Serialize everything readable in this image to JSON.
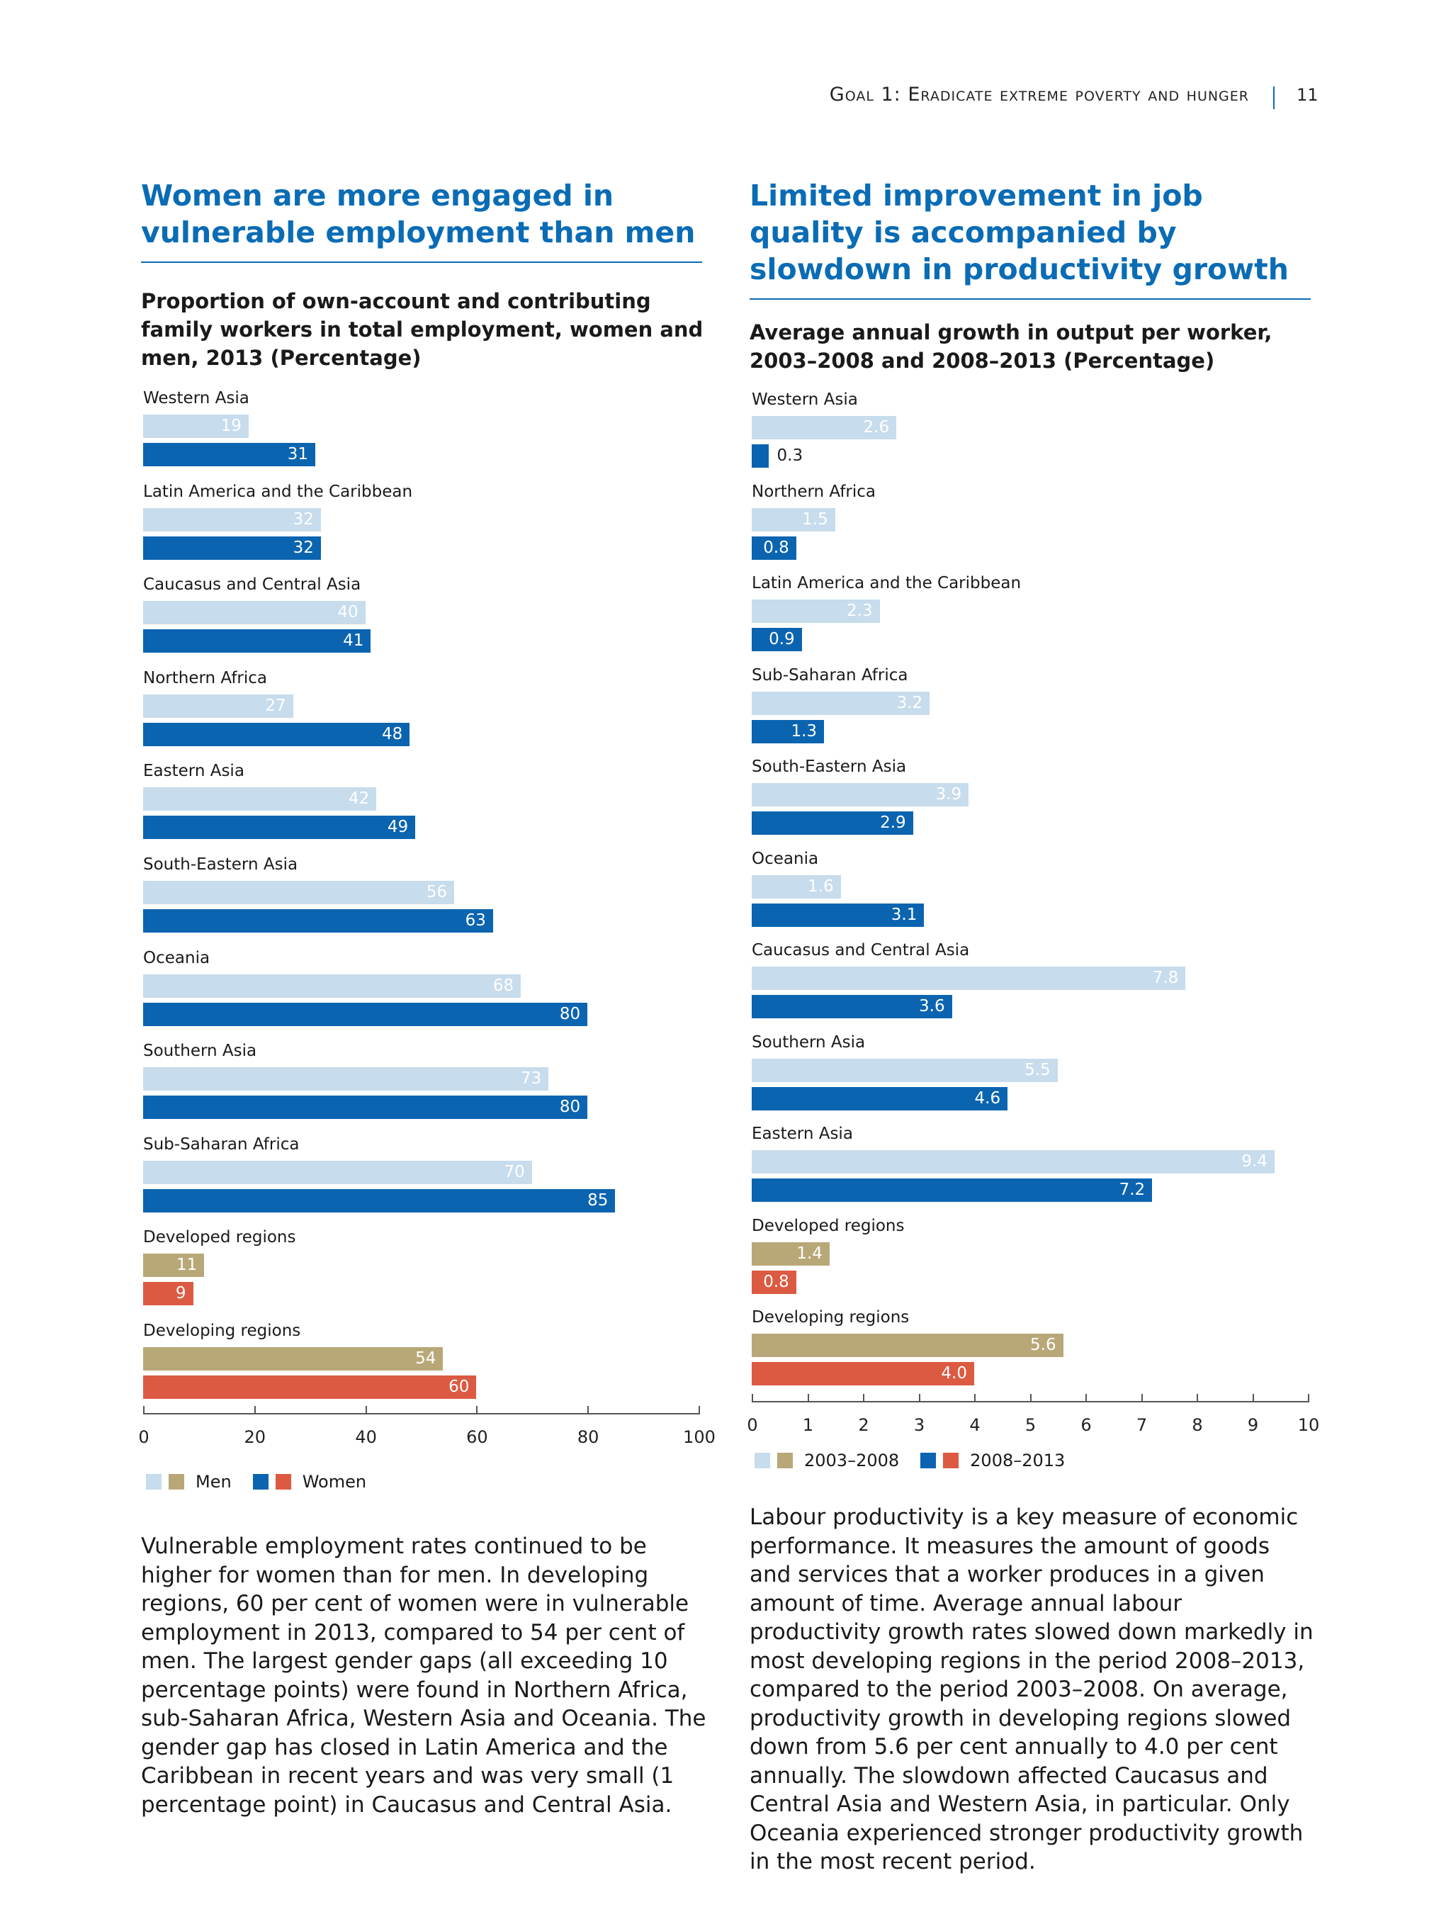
{
  "header": {
    "running_title": "Goal 1: Eradicate extreme poverty and hunger",
    "page_number": "11"
  },
  "colors": {
    "title_blue": "#0a6cb5",
    "light_blue": "#c7dcec",
    "dark_blue": "#0b64b0",
    "tan": "#b8a878",
    "red": "#dc5a41"
  },
  "left": {
    "title": "Women are more engaged in vulnerable employment than men",
    "subtitle": "Proportion of own-account and contributing family workers in total employment, women and men, 2013 (Percentage)",
    "body": "Vulnerable employment rates continued to be higher for women than for men. In developing regions, 60 per cent of women were in vulnerable employment in 2013, compared to 54 per cent of men. The largest gender gaps (all exceeding 10 percentage points) were found in Northern Africa, sub-Saharan Africa, Western Asia and Oceania. The gender gap has closed in Latin America and the Caribbean in recent years and was very small (1 percentage point) in Caucasus and Central Asia."
  },
  "right": {
    "title": "Limited improvement in job quality is accompanied by slowdown in productivity growth",
    "subtitle": "Average annual growth in output per worker, 2003–2008 and 2008–2013 (Percentage)",
    "body": "Labour productivity is a key measure of economic performance. It measures the amount of goods and services that a worker produces in a given amount of time. Average annual labour productivity growth rates slowed down markedly in most developing regions in the period 2008–2013, compared to the period 2003–2008. On average, productivity growth in developing regions slowed down from 5.6 per cent annually to 4.0 per cent annually. The slowdown affected Caucasus and Central Asia and Western Asia, in particular. Only Oceania experienced stronger productivity growth in the most recent period."
  },
  "chart_data": [
    {
      "type": "bar",
      "orientation": "horizontal",
      "title": "Proportion of own-account and contributing family workers in total employment, women and men, 2013 (Percentage)",
      "categories": [
        "Western Asia",
        "Latin America and the Caribbean",
        "Caucasus and Central Asia",
        "Northern Africa",
        "Eastern Asia",
        "South-Eastern Asia",
        "Oceania",
        "Southern Asia",
        "Sub-Saharan Africa",
        "Developed regions",
        "Developing regions"
      ],
      "series": [
        {
          "name": "Men",
          "values": [
            19,
            32,
            40,
            27,
            42,
            56,
            68,
            73,
            70,
            11,
            54
          ],
          "labels": [
            "19",
            "32",
            "40",
            "27",
            "42",
            "56",
            "68",
            "73",
            "70",
            "11",
            "54"
          ]
        },
        {
          "name": "Women",
          "values": [
            31,
            32,
            41,
            48,
            49,
            63,
            80,
            80,
            85,
            9,
            60
          ],
          "labels": [
            "31",
            "32",
            "41",
            "48",
            "49",
            "63",
            "80",
            "80",
            "85",
            "9",
            "60"
          ]
        }
      ],
      "aggregate_categories": [
        "Developed regions",
        "Developing regions"
      ],
      "xlim": [
        0,
        100
      ],
      "ticks": [
        "0",
        "20",
        "40",
        "60",
        "80",
        "100"
      ],
      "tick_values": [
        0,
        20,
        40,
        60,
        80,
        100
      ],
      "legend": {
        "placement": "bottom-left",
        "entries": [
          "Men",
          "Women"
        ]
      }
    },
    {
      "type": "bar",
      "orientation": "horizontal",
      "title": "Average annual growth in output per worker, 2003–2008 and 2008–2013 (Percentage)",
      "categories": [
        "Western Asia",
        "Northern Africa",
        "Latin America and the Caribbean",
        "Sub-Saharan Africa",
        "South-Eastern Asia",
        "Oceania",
        "Caucasus and Central Asia",
        "Southern Asia",
        "Eastern Asia",
        "Developed regions",
        "Developing regions"
      ],
      "series": [
        {
          "name": "2003–2008",
          "values": [
            2.6,
            1.5,
            2.3,
            3.2,
            3.9,
            1.6,
            7.8,
            5.5,
            9.4,
            1.4,
            5.6
          ],
          "labels": [
            "2.6",
            "1.5",
            "2.3",
            "3.2",
            "3.9",
            "1.6",
            "7.8",
            "5.5",
            "9.4",
            "1.4",
            "5.6"
          ]
        },
        {
          "name": "2008–2013",
          "values": [
            0.3,
            0.8,
            0.9,
            1.3,
            2.9,
            3.1,
            3.6,
            4.6,
            7.2,
            0.8,
            4.0
          ],
          "labels": [
            "0.3",
            "0.8",
            "0.9",
            "1.3",
            "2.9",
            "3.1",
            "3.6",
            "4.6",
            "7.2",
            "0.8",
            "4.0"
          ]
        }
      ],
      "aggregate_categories": [
        "Developed regions",
        "Developing regions"
      ],
      "xlim": [
        0,
        10
      ],
      "ticks": [
        "0",
        "1",
        "2",
        "3",
        "4",
        "5",
        "6",
        "7",
        "8",
        "9",
        "10"
      ],
      "tick_values": [
        0,
        1,
        2,
        3,
        4,
        5,
        6,
        7,
        8,
        9,
        10
      ],
      "legend": {
        "placement": "bottom-left",
        "entries": [
          "2003–2008",
          "2008–2013"
        ]
      }
    }
  ]
}
